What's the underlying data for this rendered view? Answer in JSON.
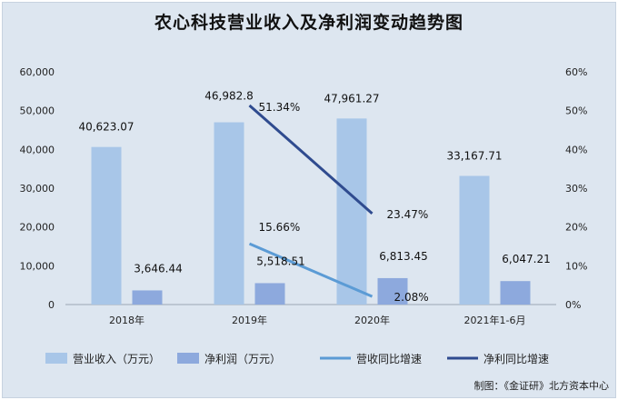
{
  "title": "农心科技营业收入及净利润变动趋势图",
  "source": "制图：《金证研》北方资本中心",
  "colors": {
    "revenue_bar": "#a8c6e8",
    "profit_bar": "#8da9dd",
    "revenue_growth_line": "#5b9bd5",
    "profit_growth_line": "#2f4b8f",
    "background": "#dde6f0"
  },
  "chart_data": {
    "type": "bar",
    "categories": [
      "2018年",
      "2019年",
      "2020年",
      "2021年1-6月"
    ],
    "series": [
      {
        "name": "营业收入（万元）",
        "kind": "bar",
        "axis": "left",
        "values": [
          40623.07,
          46982.8,
          47961.27,
          33167.71
        ],
        "labels": [
          "40,623.07",
          "46,982.8",
          "47,961.27",
          "33,167.71"
        ]
      },
      {
        "name": "净利润（万元）",
        "kind": "bar",
        "axis": "left",
        "values": [
          3646.44,
          5518.51,
          6813.45,
          6047.21
        ],
        "labels": [
          "3,646.44",
          "5,518.51",
          "6,813.45",
          "6,047.21"
        ]
      },
      {
        "name": "营收同比增速",
        "kind": "line",
        "axis": "right",
        "values": [
          null,
          15.66,
          2.08,
          null
        ],
        "labels": [
          "",
          "15.66%",
          "2.08%",
          ""
        ]
      },
      {
        "name": "净利同比增速",
        "kind": "line",
        "axis": "right",
        "values": [
          null,
          51.34,
          23.47,
          null
        ],
        "labels": [
          "",
          "51.34%",
          "23.47%",
          ""
        ]
      }
    ],
    "y_left": {
      "min": 0,
      "max": 60000,
      "ticks": [
        "0",
        "10,000",
        "20,000",
        "30,000",
        "40,000",
        "50,000",
        "60,000"
      ]
    },
    "y_right": {
      "min": 0,
      "max": 60,
      "ticks": [
        "0%",
        "10%",
        "20%",
        "30%",
        "40%",
        "50%",
        "60%"
      ]
    },
    "grid": false,
    "legend": "bottom"
  }
}
